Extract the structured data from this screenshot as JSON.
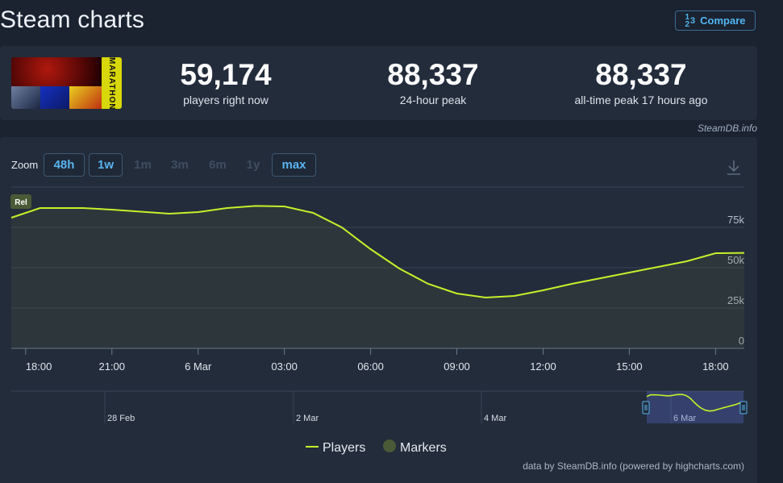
{
  "page": {
    "title": "Steam charts"
  },
  "compare": {
    "icon": "fraction-icon",
    "frac_top": "1",
    "frac_mid": "2",
    "frac_right": "3",
    "label": "Compare"
  },
  "game": {
    "logo_text": "MARATHON"
  },
  "stats": [
    {
      "value": "59,174",
      "label": "players right now"
    },
    {
      "value": "88,337",
      "label": "24-hour peak"
    },
    {
      "value": "88,337",
      "label": "all-time peak 17 hours ago"
    }
  ],
  "credit_top": "SteamDB.info",
  "zoom": {
    "label": "Zoom",
    "buttons": [
      "48h",
      "1w",
      "1m",
      "3m",
      "6m",
      "1y",
      "max"
    ],
    "active": [
      "48h",
      "1w",
      "max"
    ]
  },
  "marker_badge": "Rel",
  "legend": {
    "players": "Players",
    "markers": "Markers"
  },
  "credit_bottom": "data by SteamDB.info (powered by highcharts.com)",
  "colors": {
    "line": "#c6f02a",
    "marker": "#4a5a36",
    "accent": "#58b4f0",
    "bg": "#1b2230",
    "panel": "#232c3b"
  },
  "chart_data": {
    "type": "line",
    "series": [
      {
        "name": "Players",
        "color": "#c6f02a"
      }
    ],
    "x": [
      "5 Mar 17:30",
      "5 Mar 18:30",
      "5 Mar 20:00",
      "5 Mar 21:00",
      "5 Mar 23:00",
      "6 Mar 00:00",
      "6 Mar 01:00",
      "6 Mar 02:00",
      "6 Mar 03:00",
      "6 Mar 04:00",
      "6 Mar 05:00",
      "6 Mar 06:00",
      "6 Mar 07:00",
      "6 Mar 08:00",
      "6 Mar 09:00",
      "6 Mar 10:00",
      "6 Mar 11:00",
      "6 Mar 12:00",
      "6 Mar 13:00",
      "6 Mar 14:00",
      "6 Mar 15:00",
      "6 Mar 16:00",
      "6 Mar 17:00",
      "6 Mar 18:00",
      "6 Mar 19:00"
    ],
    "values": [
      81000,
      87000,
      87000,
      86000,
      83500,
      84500,
      87000,
      88300,
      88000,
      84000,
      75000,
      61500,
      49500,
      40000,
      34000,
      31500,
      32500,
      36000,
      40000,
      43500,
      47000,
      50500,
      54000,
      59000,
      59200
    ],
    "xticks": [
      "18:00",
      "21:00",
      "6 Mar",
      "03:00",
      "06:00",
      "09:00",
      "12:00",
      "15:00",
      "18:00"
    ],
    "yticks": [
      "0",
      "25k",
      "50k",
      "75k"
    ],
    "ylim": [
      0,
      100000
    ],
    "navigator": {
      "labels": [
        "28 Feb",
        "2 Mar",
        "4 Mar",
        "6 Mar"
      ]
    },
    "grid": true,
    "legend": "bottom-center"
  }
}
